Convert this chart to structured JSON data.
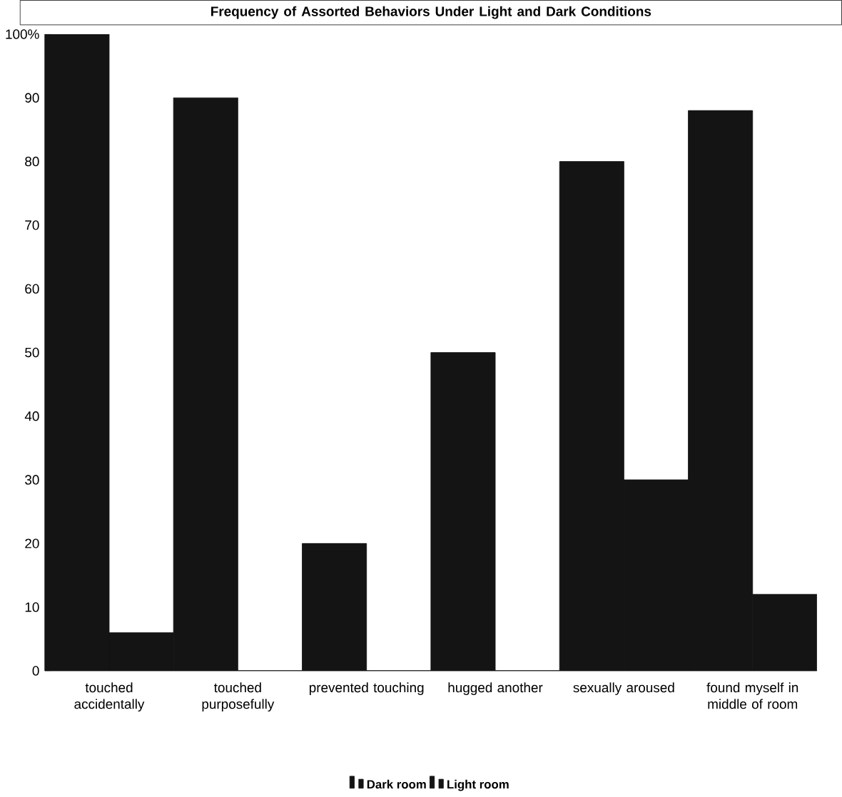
{
  "chart_data": {
    "type": "bar",
    "title": "Frequency of Assorted Behaviors Under Light and Dark Conditions",
    "categories": [
      "touched accidentally",
      "touched purposefully",
      "prevented touching",
      "hugged another",
      "sexually aroused",
      "found myself in middle of room"
    ],
    "series": [
      {
        "name": "Dark room",
        "color": "#141414",
        "values": [
          100,
          90,
          20,
          50,
          80,
          88
        ]
      },
      {
        "name": "Light room",
        "color": "#141414",
        "values": [
          6,
          0,
          0,
          0,
          30,
          12
        ]
      }
    ],
    "ylim": [
      0,
      100
    ],
    "yticks": [
      0,
      10,
      20,
      30,
      40,
      50,
      60,
      70,
      80,
      90,
      {
        "value": 100,
        "label": "100%"
      }
    ],
    "grid": false,
    "legend": "bottom"
  }
}
